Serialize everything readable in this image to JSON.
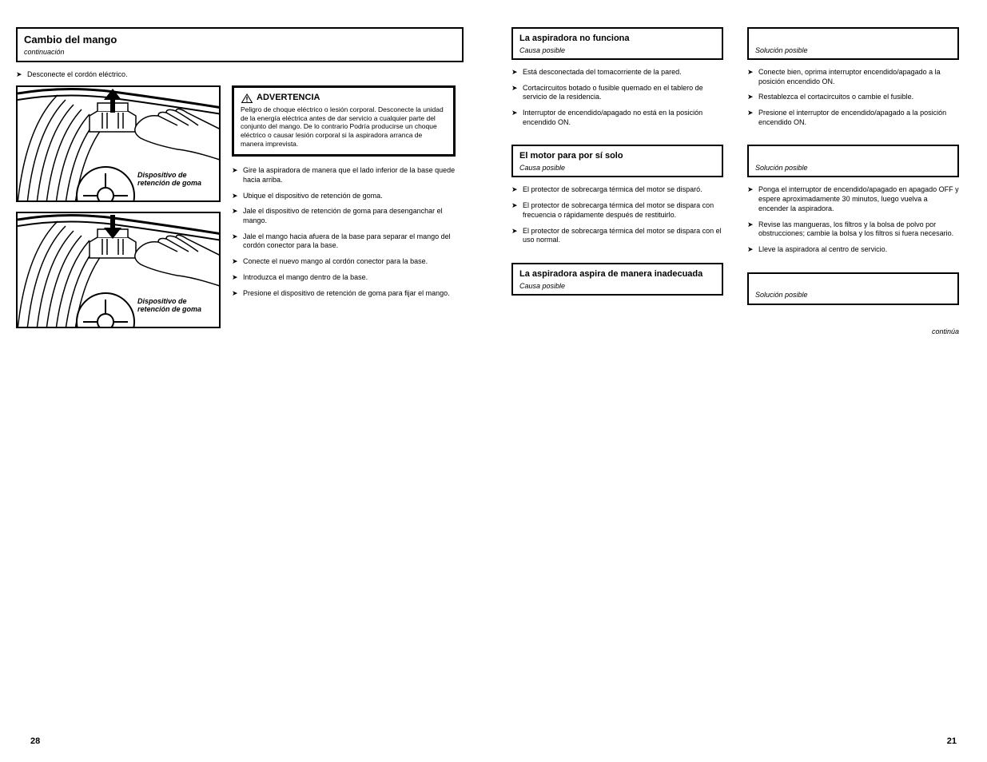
{
  "left": {
    "title": {
      "main": "Cambio del mango",
      "sub": "continuación"
    },
    "preStep": "Desconecte el cordón eléctrico.",
    "warning": {
      "label": "ADVERTENCIA",
      "text": "Peligro de choque eléctrico o lesión corporal. Desconecte la unidad de la energía eléctrica antes de dar servicio a cualquier parte del conjunto del mango. De lo contrario Podría producirse un choque eléctrico o causar lesión corporal si la aspiradora arranca de manera imprevista."
    },
    "steps": [
      "Gire la aspiradora de manera que el lado inferior de la base quede hacia arriba.",
      "Ubique el dispositivo de retención de goma.",
      "Jale el dispositivo de retención de goma para desenganchar el mango.",
      "Jale el mango hacia afuera de la base para separar el mango del cordón conector para la base.",
      "Conecte el nuevo mango al cordón conector para la base.",
      "Introduzca el mango dentro de la base.",
      "Presione el dispositivo de retención de goma para fijar el mango."
    ],
    "fig1_caption": "Dispositivo de\nretención de goma",
    "fig2_caption": "Dispositivo de\nretención de goma",
    "pageNum": "28"
  },
  "right": {
    "blocks": [
      {
        "problem": "La aspiradora no funciona",
        "cause": {
          "title": "Causa posible",
          "items": [
            "Está desconectada del tomacorriente de la pared.",
            "Cortacircuitos botado o fusible quemado en el tablero de servicio de la residencia.",
            "Interruptor de encendido/apagado no está en la posición encendido ON."
          ]
        },
        "solution": {
          "title": "Solución posible",
          "items": [
            "Conecte bien, oprima interruptor encendido/apagado a la posición encendido ON.",
            "Restablezca el cortacircuitos o cambie el fusible.",
            "Presione el interruptor de encendido/apagado a la posición encendido ON."
          ]
        }
      },
      {
        "problem": "El motor para por sí solo",
        "cause": {
          "title": "Causa posible",
          "items": [
            "El protector de sobrecarga térmica del motor se disparó.",
            "El protector de sobrecarga térmica del motor se dispara con frecuencia o rápidamente después de restituirlo.",
            "El protector de sobrecarga térmica del motor se dispara con el uso normal."
          ]
        },
        "solution": {
          "title": "Solución posible",
          "items": [
            "Ponga el interruptor de encendido/apagado en apagado OFF y espere aproximadamente 30 minutos, luego vuelva a encender la aspiradora.",
            "Revise las mangueras, los filtros y la bolsa de polvo por obstrucciones; cambie la bolsa y los filtros si fuera necesario.",
            "Lleve la aspiradora al centro de servicio."
          ]
        }
      },
      {
        "problem": "La aspiradora aspira de manera inadecuada",
        "cause": {
          "title": "Causa posible",
          "items": []
        },
        "solution": {
          "title": "Solución posible",
          "items": []
        }
      }
    ],
    "continued": "continúa",
    "pageNum": "21"
  }
}
